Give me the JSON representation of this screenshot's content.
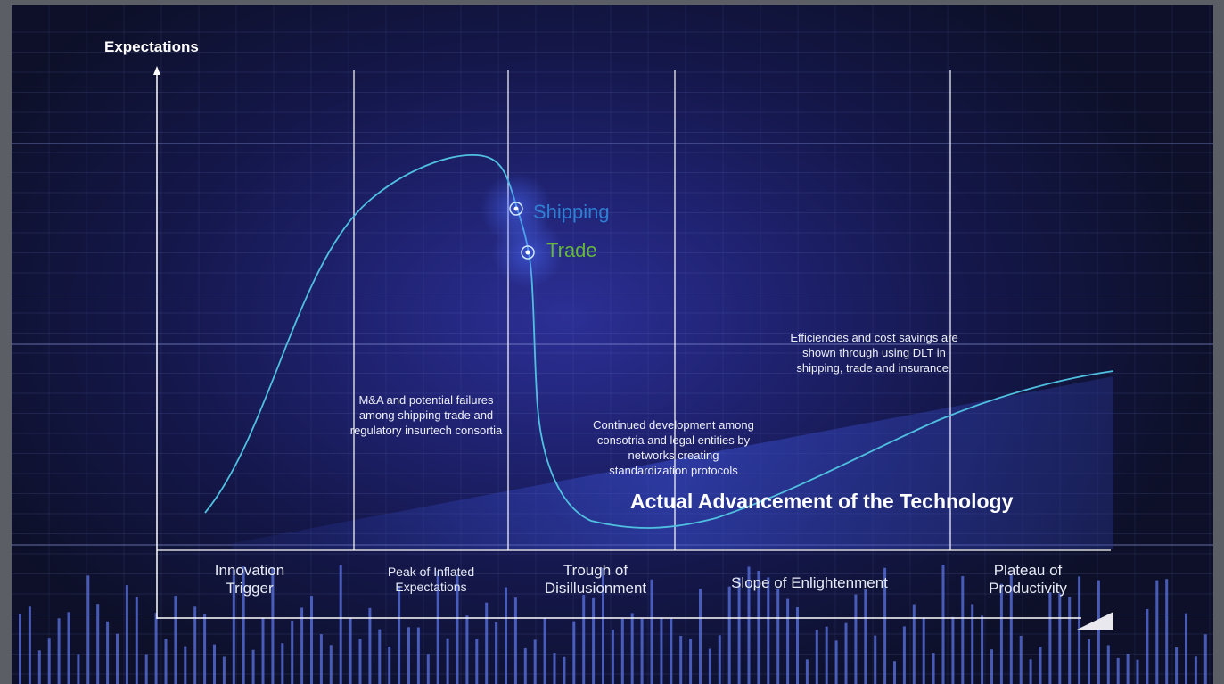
{
  "y_axis_title": "Expectations",
  "phases": [
    {
      "label": "Innovation\nTrigger"
    },
    {
      "label": "Peak of Inflated\nExpectations"
    },
    {
      "label": "Trough of\nDisillusionment"
    },
    {
      "label": "Slope of Enlightenment"
    },
    {
      "label": "Plateau of\nProductivity"
    }
  ],
  "markers": [
    {
      "label": "Shipping",
      "color": "#2e7fd4"
    },
    {
      "label": "Trade",
      "color": "#66b83a"
    }
  ],
  "annotations": {
    "peak_note": "M&A and potential failures\namong shipping trade and\nregulatory  insurtech consortia",
    "trough_note": "Continued development among\nconsotria  and legal entities by\nnetworks creating\nstandardization protocols",
    "plateau_note": "Efficiencies and cost savings are\nshown through using DLT in\nshipping, trade and insurance."
  },
  "technology_label": "Actual Advancement of the Technology",
  "colors": {
    "curve": "#4fc0e0",
    "axis": "#ffffff",
    "shipping": "#2e7fd4",
    "trade": "#66b83a"
  }
}
